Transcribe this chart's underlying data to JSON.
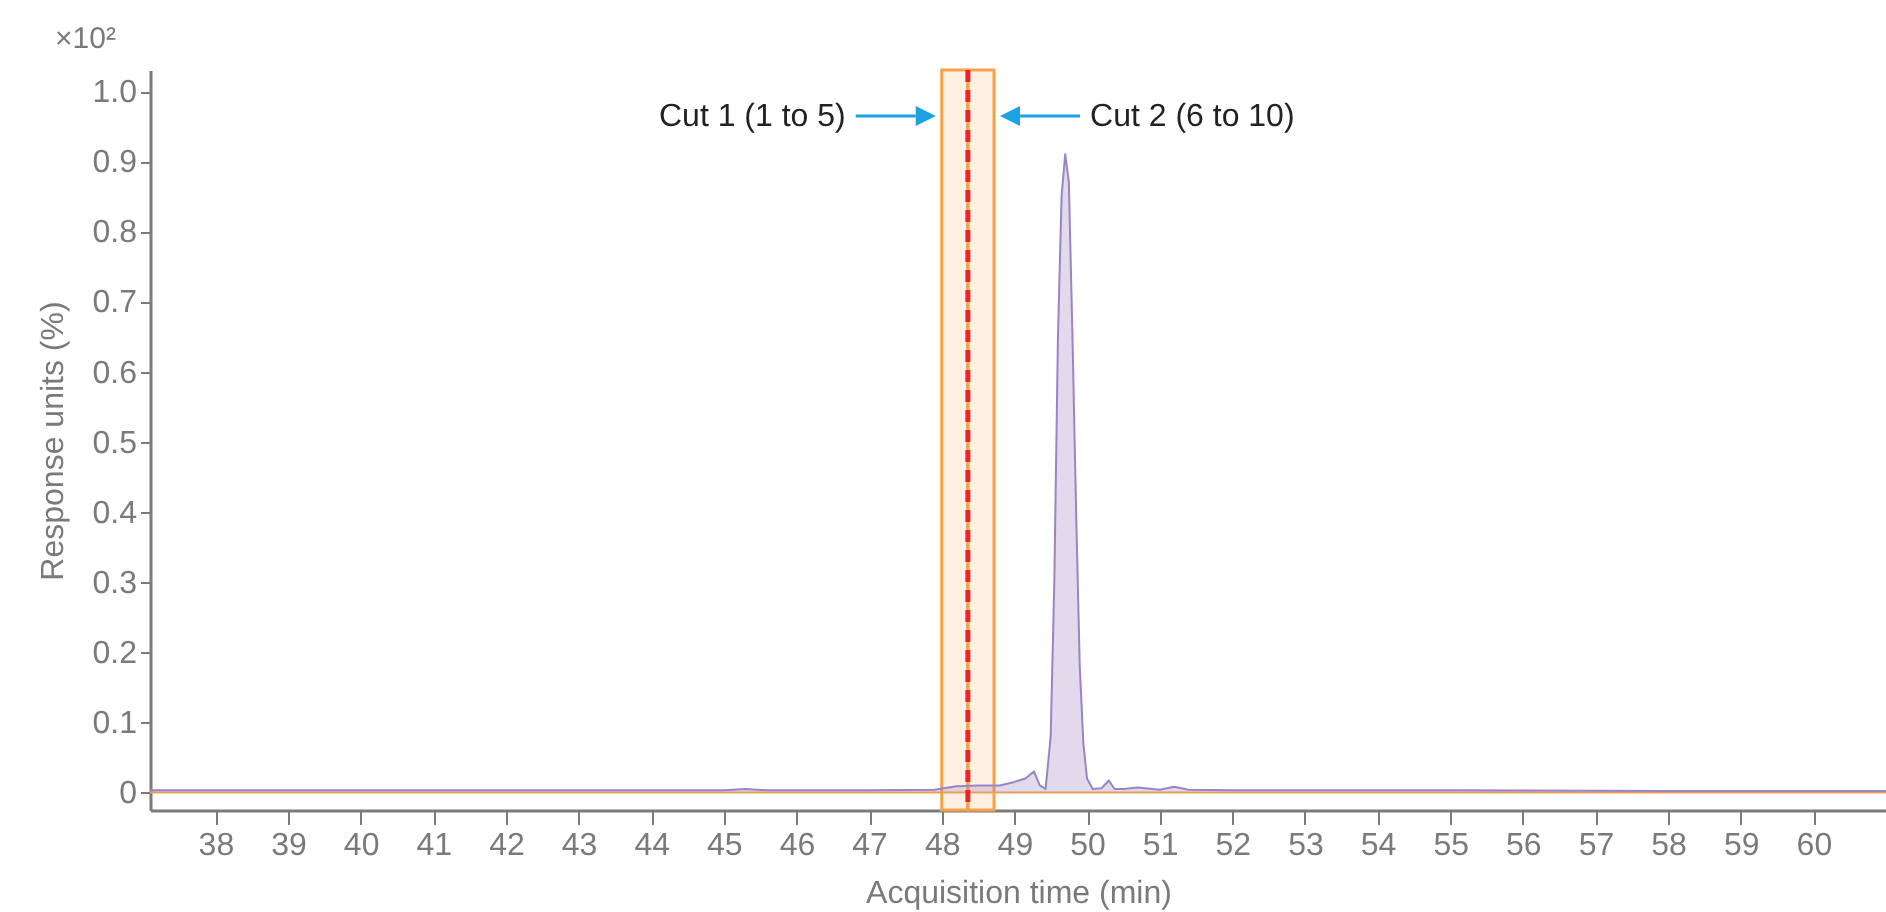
{
  "chart_data": {
    "type": "line",
    "xlabel": "Acquisition time (min)",
    "ylabel": "Response units (%)",
    "annotations": [
      "×10²"
    ],
    "series": [
      {
        "color": "#f5a34a",
        "x": [
          37.1,
          45.0,
          48.0,
          48.7,
          49.5,
          61.0
        ],
        "values": [
          0.0,
          0.0,
          0.0,
          0.0,
          0.0,
          0.0
        ]
      },
      {
        "type": "area",
        "color": "#9b84c4",
        "x": [
          37.1,
          40.0,
          43.0,
          45.0,
          45.3,
          45.6,
          47.0,
          47.9,
          48.2,
          48.5,
          48.8,
          49.0,
          49.15,
          49.27,
          49.35,
          49.43,
          49.5,
          49.55,
          49.6,
          49.65,
          49.7,
          49.75,
          49.8,
          49.85,
          49.9,
          49.95,
          50.0,
          50.08,
          50.2,
          50.3,
          50.38,
          50.5,
          50.7,
          51.0,
          51.2,
          51.4,
          52.0,
          55.0,
          58.0,
          61.0
        ],
        "values": [
          0.003,
          0.003,
          0.003,
          0.003,
          0.005,
          0.003,
          0.003,
          0.004,
          0.009,
          0.01,
          0.01,
          0.015,
          0.02,
          0.03,
          0.01,
          0.005,
          0.08,
          0.3,
          0.65,
          0.85,
          0.91,
          0.87,
          0.65,
          0.4,
          0.18,
          0.07,
          0.02,
          0.005,
          0.006,
          0.017,
          0.005,
          0.005,
          0.007,
          0.004,
          0.008,
          0.004,
          0.003,
          0.003,
          0.002,
          0.002
        ]
      }
    ],
    "xlim": [
      37.1,
      61.0
    ],
    "xticks": [
      38,
      39,
      40,
      41,
      42,
      43,
      44,
      45,
      46,
      47,
      48,
      49,
      50,
      51,
      52,
      53,
      54,
      55,
      56,
      57,
      58,
      59,
      60
    ],
    "ylim": [
      -0.025,
      1.03
    ],
    "yticks": [
      0,
      0.1,
      0.2,
      0.3,
      0.4,
      0.5,
      0.6,
      0.7,
      0.8,
      0.9,
      {
        "value": 1,
        "label": "1.0"
      }
    ],
    "bands": [
      {
        "axis": "x",
        "from": 48.0,
        "to": 48.36,
        "label": "Cut 1 (1 to 5)",
        "color": "#f5a34a"
      },
      {
        "axis": "x",
        "from": 48.36,
        "to": 48.72,
        "label": "Cut 2 (6 to 10)",
        "color": "#f5a34a"
      }
    ],
    "ref_lines": [
      {
        "axis": "x",
        "value": 48.36,
        "color": "#e8262a",
        "line_style": "dashed"
      }
    ],
    "grid": false
  }
}
